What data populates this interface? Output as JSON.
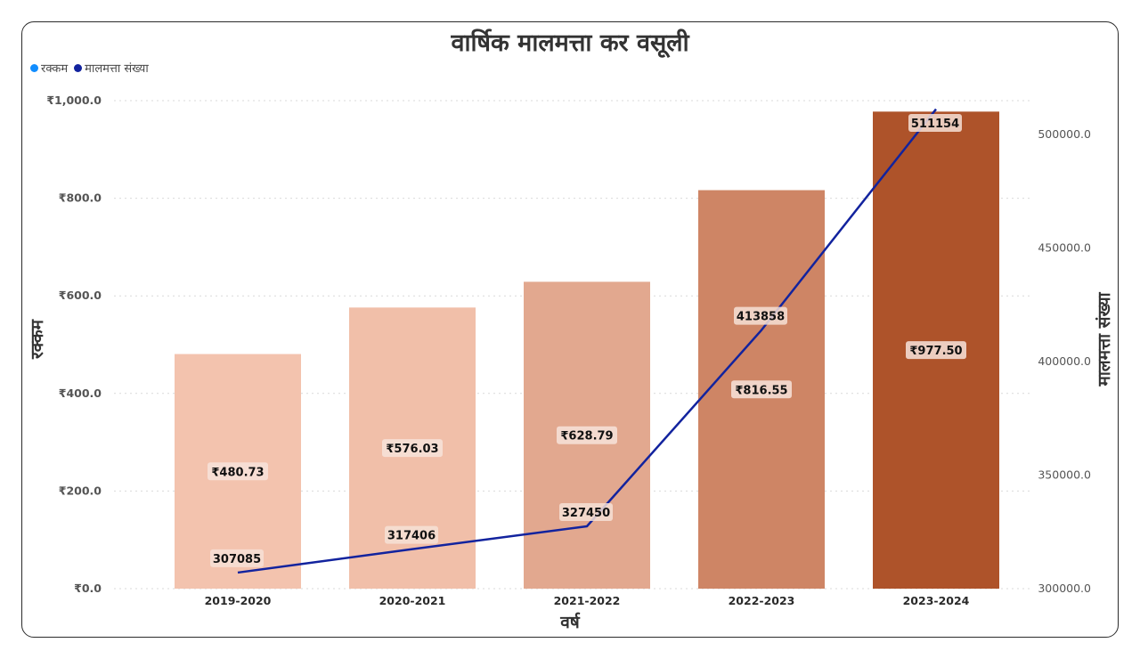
{
  "title": "वार्षिक मालमत्ता कर वसूली",
  "legend": {
    "items": [
      {
        "label": "रक्कम",
        "color": "#118DFF"
      },
      {
        "label": "मालमत्ता संख्या",
        "color": "#12239E"
      }
    ]
  },
  "chart_data": {
    "type": "bar+line",
    "title": "वार्षिक मालमत्ता कर वसूली",
    "xlabel": "वर्ष",
    "ylabel": "रक्कम",
    "y2label": "मालमत्ता संख्या",
    "categories": [
      "2019-2020",
      "2020-2021",
      "2021-2022",
      "2022-2023",
      "2023-2024"
    ],
    "ylim": [
      0,
      1000
    ],
    "yticks": [
      0,
      200,
      400,
      600,
      800,
      1000
    ],
    "ytick_labels": [
      "₹0.0",
      "₹200.0",
      "₹400.0",
      "₹600.0",
      "₹800.0",
      "₹1,000.0"
    ],
    "y2lim": [
      300000,
      515000
    ],
    "y2ticks": [
      300000,
      350000,
      400000,
      450000,
      500000
    ],
    "y2tick_labels": [
      "300000.0",
      "350000.0",
      "400000.0",
      "450000.0",
      "500000.0"
    ],
    "series": [
      {
        "name": "रक्कम",
        "type": "bar",
        "axis": "left",
        "values": [
          480.73,
          576.03,
          628.79,
          816.55,
          977.5
        ],
        "labels": [
          "₹480.73",
          "₹576.03",
          "₹628.79",
          "₹816.55",
          "₹977.50"
        ],
        "colors": [
          "#F3C3AE",
          "#F1BFA9",
          "#E2A88F",
          "#CE8565",
          "#AE532A"
        ]
      },
      {
        "name": "मालमत्ता संख्या",
        "type": "line",
        "axis": "right",
        "values": [
          307085,
          317406,
          327450,
          413858,
          511154
        ],
        "labels": [
          "307085",
          "317406",
          "327450",
          "413858",
          "511154"
        ],
        "color": "#12239E"
      }
    ],
    "grid": true,
    "legend_position": "top-left"
  }
}
